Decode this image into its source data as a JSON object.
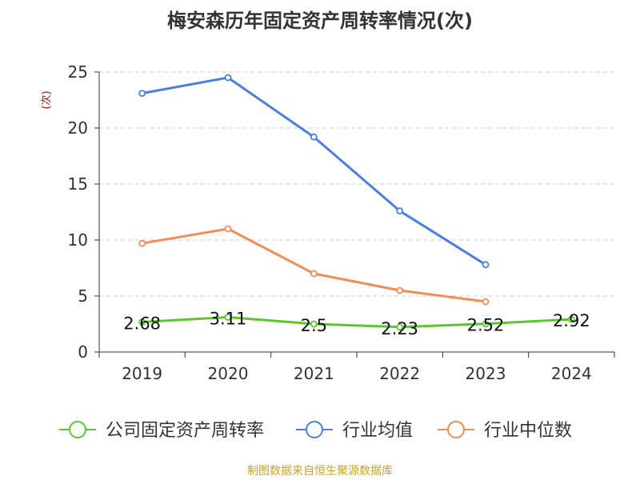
{
  "chart_data": {
    "type": "line",
    "title": "梅安森历年固定资产周转率情况(次)",
    "ylabel": "(次)",
    "xlabel": "",
    "ylim": [
      0,
      25
    ],
    "yticks": [
      0,
      5,
      10,
      15,
      20,
      25
    ],
    "grid": true,
    "legend_position": "bottom",
    "categories": [
      "2019",
      "2020",
      "2021",
      "2022",
      "2023",
      "2024"
    ],
    "series": [
      {
        "name": "公司固定资产周转率",
        "color": "#5ac72d",
        "values": [
          2.68,
          3.11,
          2.5,
          2.23,
          2.52,
          2.92
        ],
        "labels": [
          "2.68",
          "3.11",
          "2.5",
          "2.23",
          "2.52",
          "2.92"
        ]
      },
      {
        "name": "行业均值",
        "color": "#4a7fe0",
        "values": [
          23.1,
          24.5,
          19.2,
          12.6,
          7.8,
          null
        ]
      },
      {
        "name": "行业中位数",
        "color": "#f28c58",
        "values": [
          9.7,
          11.0,
          7.0,
          5.5,
          4.5,
          null
        ]
      }
    ]
  },
  "footer": {
    "source": "制图数据来自恒生聚源数据库"
  }
}
